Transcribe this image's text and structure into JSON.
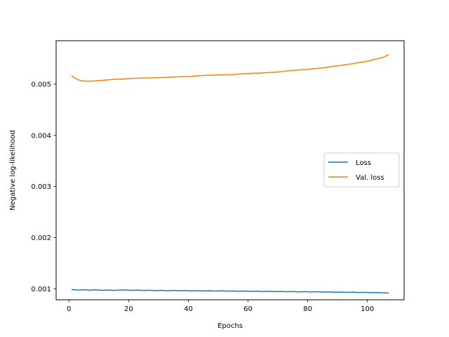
{
  "chart_data": {
    "type": "line",
    "title": "",
    "xlabel": "Epochs",
    "ylabel": "Negative log-likelihood",
    "xlim": [
      -4.3,
      112.3
    ],
    "ylim": [
      0.000785,
      0.00585
    ],
    "xticks": [
      0,
      20,
      40,
      60,
      80,
      100
    ],
    "yticks": [
      0.001,
      0.002,
      0.003,
      0.004,
      0.005
    ],
    "ytick_labels": [
      "0.001",
      "0.002",
      "0.003",
      "0.004",
      "0.005"
    ],
    "grid": false,
    "legend_position": "center-right",
    "series": [
      {
        "name": "Loss",
        "color": "#1f77b4",
        "x": [
          1,
          3,
          5,
          7,
          9,
          11,
          13,
          15,
          17,
          19,
          21,
          23,
          25,
          27,
          29,
          31,
          33,
          35,
          37,
          39,
          41,
          43,
          45,
          47,
          49,
          51,
          53,
          55,
          57,
          59,
          61,
          63,
          65,
          67,
          69,
          71,
          73,
          75,
          77,
          79,
          81,
          83,
          85,
          87,
          89,
          91,
          93,
          95,
          97,
          99,
          101,
          103,
          105,
          107
        ],
        "values": [
          0.000985,
          0.000975,
          0.000983,
          0.000972,
          0.00098,
          0.000971,
          0.000978,
          0.000969,
          0.000975,
          0.000977,
          0.000968,
          0.000973,
          0.000966,
          0.000972,
          0.000964,
          0.00097,
          0.000962,
          0.000968,
          0.000961,
          0.000966,
          0.000959,
          0.000964,
          0.000958,
          0.000962,
          0.000955,
          0.000961,
          0.000953,
          0.000958,
          0.000951,
          0.000956,
          0.000949,
          0.000954,
          0.000946,
          0.000951,
          0.000944,
          0.000948,
          0.000942,
          0.000947,
          0.00094,
          0.000944,
          0.000938,
          0.000942,
          0.000936,
          0.000939,
          0.000933,
          0.000936,
          0.00093,
          0.000934,
          0.000927,
          0.000931,
          0.000925,
          0.000928,
          0.000922,
          0.000918
        ]
      },
      {
        "name": "Val. loss",
        "color": "#ff7f0e",
        "x": [
          1,
          2,
          3,
          4,
          5,
          6,
          7,
          8,
          10,
          12,
          14,
          16,
          18,
          20,
          25,
          30,
          35,
          40,
          45,
          50,
          55,
          60,
          65,
          70,
          75,
          80,
          85,
          90,
          95,
          100,
          105,
          107
        ],
        "values": [
          0.00516,
          0.00512,
          0.00509,
          0.00507,
          0.00506,
          0.00506,
          0.00506,
          0.00506,
          0.00507,
          0.00508,
          0.00509,
          0.0051,
          0.0051,
          0.00511,
          0.00512,
          0.00513,
          0.00514,
          0.00515,
          0.00517,
          0.00518,
          0.00519,
          0.00521,
          0.00522,
          0.00524,
          0.00527,
          0.00529,
          0.00532,
          0.00536,
          0.0054,
          0.00545,
          0.00552,
          0.00557
        ]
      }
    ]
  }
}
